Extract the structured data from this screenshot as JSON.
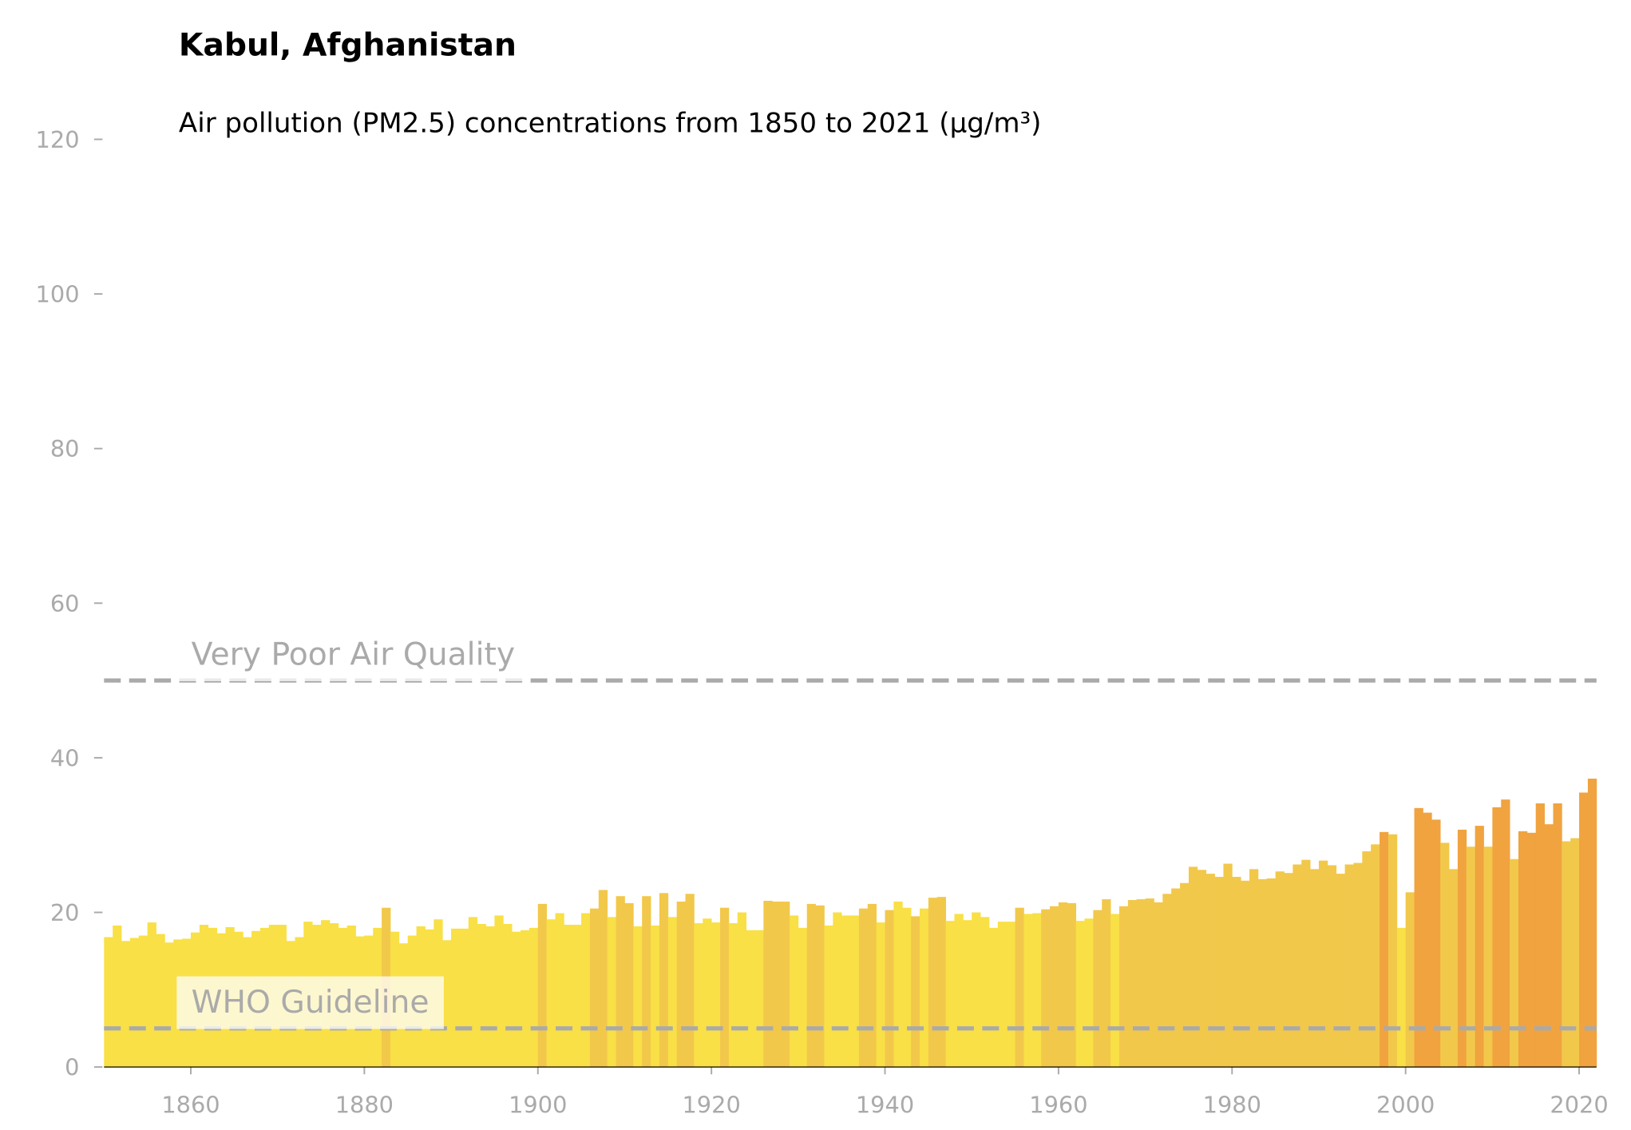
{
  "chart_data": {
    "type": "bar",
    "title": "Kabul, Afghanistan",
    "subtitle": "Air pollution (PM2.5) concentrations from 1850 to 2021 (µg/m³)",
    "x": [
      1850,
      1851,
      1852,
      1853,
      1854,
      1855,
      1856,
      1857,
      1858,
      1859,
      1860,
      1861,
      1862,
      1863,
      1864,
      1865,
      1866,
      1867,
      1868,
      1869,
      1870,
      1871,
      1872,
      1873,
      1874,
      1875,
      1876,
      1877,
      1878,
      1879,
      1880,
      1881,
      1882,
      1883,
      1884,
      1885,
      1886,
      1887,
      1888,
      1889,
      1890,
      1891,
      1892,
      1893,
      1894,
      1895,
      1896,
      1897,
      1898,
      1899,
      1900,
      1901,
      1902,
      1903,
      1904,
      1905,
      1906,
      1907,
      1908,
      1909,
      1910,
      1911,
      1912,
      1913,
      1914,
      1915,
      1916,
      1917,
      1918,
      1919,
      1920,
      1921,
      1922,
      1923,
      1924,
      1925,
      1926,
      1927,
      1928,
      1929,
      1930,
      1931,
      1932,
      1933,
      1934,
      1935,
      1936,
      1937,
      1938,
      1939,
      1940,
      1941,
      1942,
      1943,
      1944,
      1945,
      1946,
      1947,
      1948,
      1949,
      1950,
      1951,
      1952,
      1953,
      1954,
      1955,
      1956,
      1957,
      1958,
      1959,
      1960,
      1961,
      1962,
      1963,
      1964,
      1965,
      1966,
      1967,
      1968,
      1969,
      1970,
      1971,
      1972,
      1973,
      1974,
      1975,
      1976,
      1977,
      1978,
      1979,
      1980,
      1981,
      1982,
      1983,
      1984,
      1985,
      1986,
      1987,
      1988,
      1989,
      1990,
      1991,
      1992,
      1993,
      1994,
      1995,
      1996,
      1997,
      1998,
      1999,
      2000,
      2001,
      2002,
      2003,
      2004,
      2005,
      2006,
      2007,
      2008,
      2009,
      2010,
      2011,
      2012,
      2013,
      2014,
      2015,
      2016,
      2017,
      2018,
      2019,
      2020,
      2021
    ],
    "values": [
      16.8,
      18.3,
      16.3,
      16.7,
      17.0,
      18.7,
      17.2,
      16.1,
      16.5,
      16.6,
      17.4,
      18.4,
      18.0,
      17.3,
      18.1,
      17.5,
      16.8,
      17.6,
      18.0,
      18.4,
      18.4,
      16.3,
      16.8,
      18.8,
      18.4,
      19.0,
      18.6,
      18.0,
      18.3,
      16.9,
      17.0,
      18.0,
      20.6,
      17.5,
      16.0,
      17.0,
      18.2,
      17.8,
      19.1,
      16.4,
      17.9,
      17.9,
      19.4,
      18.5,
      18.2,
      19.6,
      18.5,
      17.5,
      17.7,
      18.0,
      21.1,
      19.1,
      19.9,
      18.4,
      18.4,
      19.9,
      20.5,
      22.9,
      19.4,
      22.1,
      21.2,
      18.2,
      22.1,
      18.3,
      22.5,
      19.4,
      21.4,
      22.4,
      18.6,
      19.2,
      18.7,
      20.6,
      18.6,
      20.0,
      17.7,
      17.7,
      21.5,
      21.4,
      21.4,
      19.6,
      18.0,
      21.1,
      20.9,
      18.3,
      20.0,
      19.6,
      19.6,
      20.5,
      21.1,
      18.7,
      20.3,
      21.4,
      20.6,
      19.5,
      20.5,
      21.9,
      22.0,
      18.9,
      19.8,
      19.0,
      20.0,
      19.4,
      18.0,
      18.8,
      18.8,
      20.6,
      19.8,
      19.9,
      20.4,
      20.8,
      21.3,
      21.2,
      18.9,
      19.2,
      20.3,
      21.7,
      19.8,
      20.8,
      21.6,
      21.7,
      21.8,
      21.3,
      22.4,
      23.1,
      23.8,
      25.9,
      25.5,
      25.0,
      24.6,
      26.3,
      24.6,
      24.1,
      25.6,
      24.3,
      24.4,
      25.3,
      25.1,
      26.2,
      26.8,
      25.6,
      26.7,
      26.1,
      25.0,
      26.2,
      26.4,
      27.9,
      28.8,
      30.4,
      30.1,
      18.0,
      22.6,
      33.5,
      32.9,
      32.0,
      29.0,
      25.6,
      30.7,
      28.5,
      31.2,
      28.5,
      33.6,
      34.6,
      26.9,
      30.5,
      30.3,
      34.1,
      31.4,
      34.1,
      29.2,
      29.6,
      35.5,
      37.3
    ],
    "colors": [
      "#f8e046",
      "#f8e046",
      "#f8e046",
      "#f8e046",
      "#f8e046",
      "#f8e046",
      "#f8e046",
      "#f8e046",
      "#f8e046",
      "#f8e046",
      "#f8e046",
      "#f8e046",
      "#f8e046",
      "#f8e046",
      "#f8e046",
      "#f8e046",
      "#f8e046",
      "#f8e046",
      "#f8e046",
      "#f8e046",
      "#f8e046",
      "#f8e046",
      "#f8e046",
      "#f8e046",
      "#f8e046",
      "#f8e046",
      "#f8e046",
      "#f8e046",
      "#f8e046",
      "#f8e046",
      "#f8e046",
      "#f8e046",
      "#f2c84b",
      "#f8e046",
      "#f8e046",
      "#f8e046",
      "#f8e046",
      "#f8e046",
      "#f8e046",
      "#f8e046",
      "#f8e046",
      "#f8e046",
      "#f8e046",
      "#f8e046",
      "#f8e046",
      "#f8e046",
      "#f8e046",
      "#f8e046",
      "#f8e046",
      "#f8e046",
      "#f2c84b",
      "#f8e046",
      "#f8e046",
      "#f8e046",
      "#f8e046",
      "#f8e046",
      "#f2c84b",
      "#f2c84b",
      "#f8e046",
      "#f2c84b",
      "#f2c84b",
      "#f8e046",
      "#f2c84b",
      "#f8e046",
      "#f2c84b",
      "#f8e046",
      "#f2c84b",
      "#f2c84b",
      "#f8e046",
      "#f8e046",
      "#f8e046",
      "#f2c84b",
      "#f8e046",
      "#f8e046",
      "#f8e046",
      "#f8e046",
      "#f2c84b",
      "#f2c84b",
      "#f2c84b",
      "#f8e046",
      "#f8e046",
      "#f2c84b",
      "#f2c84b",
      "#f8e046",
      "#f8e046",
      "#f8e046",
      "#f8e046",
      "#f2c84b",
      "#f2c84b",
      "#f8e046",
      "#f2c84b",
      "#f8e046",
      "#f8e046",
      "#f2c84b",
      "#f8e046",
      "#f2c84b",
      "#f2c84b",
      "#f8e046",
      "#f8e046",
      "#f8e046",
      "#f8e046",
      "#f8e046",
      "#f8e046",
      "#f8e046",
      "#f8e046",
      "#f2c84b",
      "#f8e046",
      "#f8e046",
      "#f2c84b",
      "#f2c84b",
      "#f2c84b",
      "#f2c84b",
      "#f8e046",
      "#f8e046",
      "#f2c84b",
      "#f2c84b",
      "#f8e046",
      "#f2c84b",
      "#f2c84b",
      "#f2c84b",
      "#f2c84b",
      "#f2c84b",
      "#f2c84b",
      "#f2c84b",
      "#f2c84b",
      "#f2c84b",
      "#f2c84b",
      "#f2c84b",
      "#f2c84b",
      "#f2c84b",
      "#f2c84b",
      "#f2c84b",
      "#f2c84b",
      "#f2c84b",
      "#f2c84b",
      "#f2c84b",
      "#f2c84b",
      "#f2c84b",
      "#f2c84b",
      "#f2c84b",
      "#f2c84b",
      "#f2c84b",
      "#f2c84b",
      "#f2c84b",
      "#f2c84b",
      "#f2c84b",
      "#f2c84b",
      "#f0a33f",
      "#f2c84b",
      "#f8e046",
      "#f2c84b",
      "#f0a33f",
      "#f0a33f",
      "#f0a33f",
      "#f2c84b",
      "#f2c84b",
      "#f0a33f",
      "#f2c84b",
      "#f0a33f",
      "#f2c84b",
      "#f0a33f",
      "#f0a33f",
      "#f2c84b",
      "#f0a33f",
      "#f0a33f",
      "#f0a33f",
      "#f0a33f",
      "#f0a33f",
      "#f2c84b",
      "#f2c84b",
      "#f0a33f",
      "#f0a33f"
    ],
    "annotations": [
      {
        "label": "WHO Guideline",
        "value": 5
      },
      {
        "label": "Very Poor Air Quality",
        "value": 50
      }
    ],
    "xlim": [
      1850,
      2022
    ],
    "ylim": [
      0,
      120
    ],
    "xticks": [
      1860,
      1880,
      1900,
      1920,
      1940,
      1960,
      1980,
      2000,
      2020
    ],
    "yticks": [
      0,
      20,
      40,
      60,
      80,
      100,
      120
    ]
  }
}
